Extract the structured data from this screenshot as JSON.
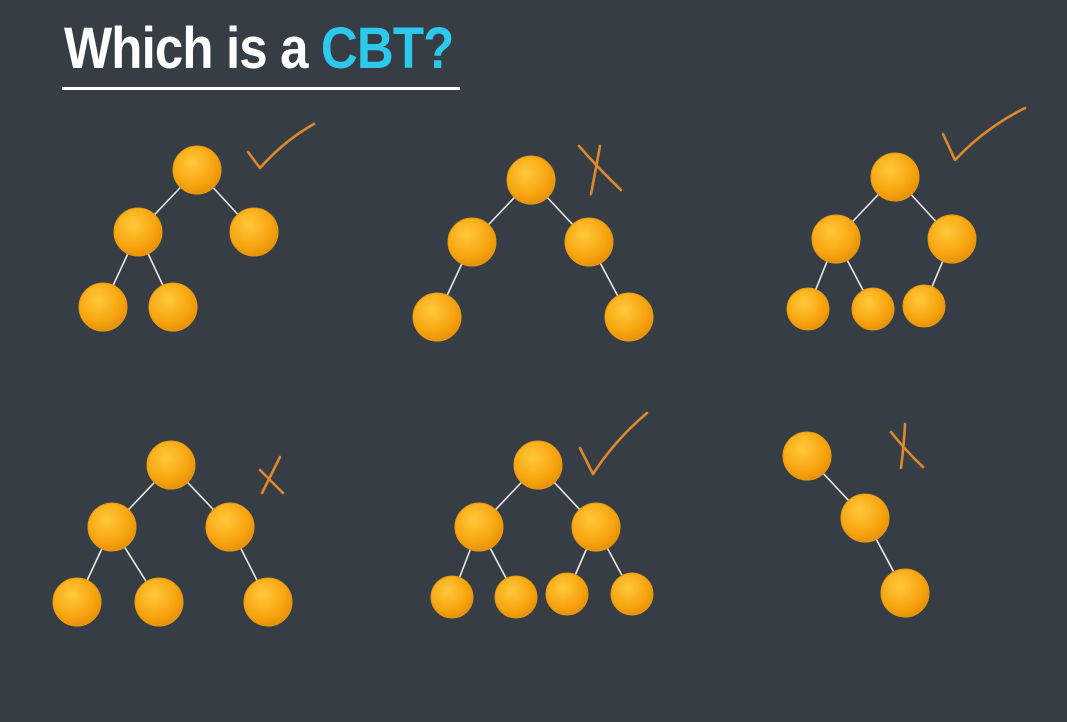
{
  "title": {
    "prefix": "Which is a ",
    "accent": "CBT?",
    "accent_color": "#2ec8ec"
  },
  "colors": {
    "background": "#373d45",
    "node_fill": "#f8a510",
    "edge": "#e8e8e8",
    "annotation": "#dd8a2c"
  },
  "trees": [
    {
      "id": "tree-1",
      "verdict": "check"
    },
    {
      "id": "tree-2",
      "verdict": "cross"
    },
    {
      "id": "tree-3",
      "verdict": "check"
    },
    {
      "id": "tree-4",
      "verdict": "cross"
    },
    {
      "id": "tree-5",
      "verdict": "check"
    },
    {
      "id": "tree-6",
      "verdict": "cross"
    }
  ]
}
